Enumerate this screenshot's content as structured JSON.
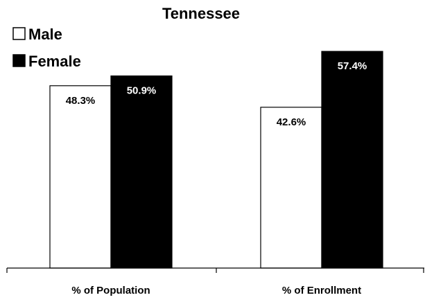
{
  "chart_data": {
    "type": "bar",
    "title": "Tennessee",
    "categories": [
      "% of Population",
      "% of Enrollment"
    ],
    "series": [
      {
        "name": "Male",
        "values": [
          48.3,
          42.6
        ],
        "labels": [
          "48.3%",
          "42.6%"
        ],
        "color": "#ffffff",
        "label_color": "#000000"
      },
      {
        "name": "Female",
        "values": [
          50.9,
          57.4
        ],
        "labels": [
          "50.9%",
          "57.4%"
        ],
        "color": "#000000",
        "label_color": "#ffffff"
      }
    ],
    "xlabel": "",
    "ylabel": "",
    "ylim": [
      0,
      60
    ],
    "grid": false,
    "legend": "top-left"
  },
  "legend": {
    "male_symbol": "☐",
    "female_symbol": "■"
  }
}
